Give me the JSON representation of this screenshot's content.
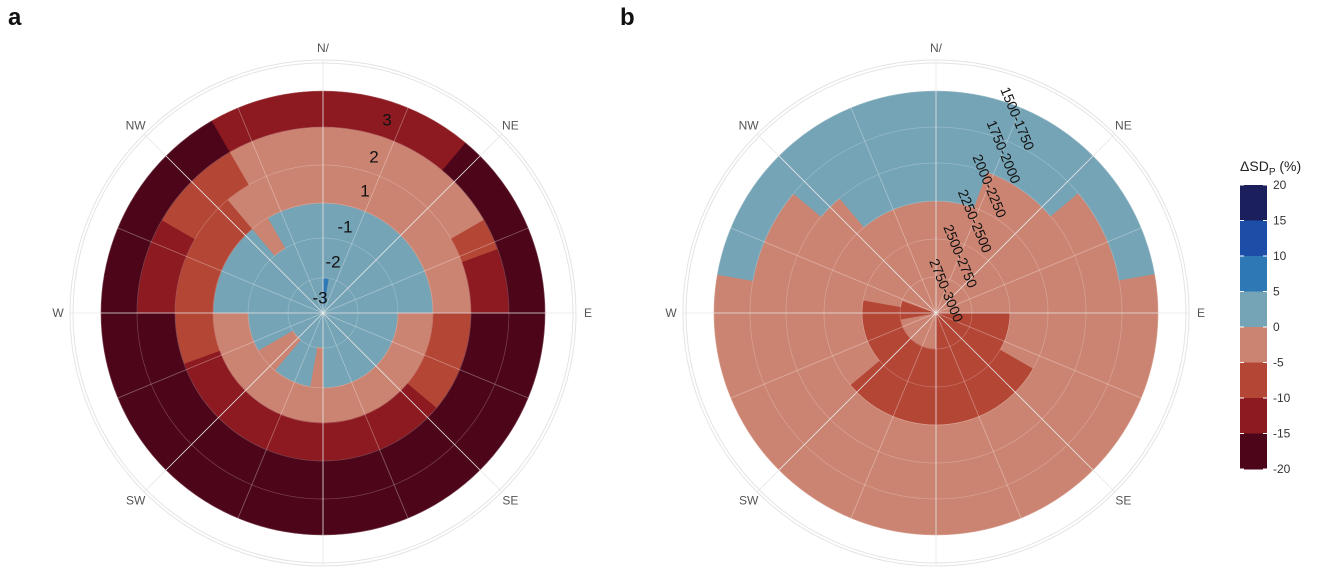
{
  "panels": {
    "a": {
      "letter": "a"
    },
    "b": {
      "letter": "b"
    }
  },
  "compass": {
    "directions": [
      "N/",
      "NE",
      "E",
      "SE",
      "S",
      "SW",
      "W",
      "NW"
    ]
  },
  "colorbar": {
    "title": "ΔSD",
    "title_sub": "P",
    "title_suffix": " (%)",
    "ticks": [
      "20",
      "15",
      "10",
      "5",
      "0",
      "-5",
      "-10",
      "-15",
      "-20"
    ],
    "bins": [
      {
        "from": 15,
        "to": 20,
        "color": "#1b1f5c"
      },
      {
        "from": 10,
        "to": 15,
        "color": "#1c4ea8"
      },
      {
        "from": 5,
        "to": 10,
        "color": "#2f78b6"
      },
      {
        "from": 0,
        "to": 5,
        "color": "#75a4b6"
      },
      {
        "from": -5,
        "to": 0,
        "color": "#cc8472"
      },
      {
        "from": -10,
        "to": -5,
        "color": "#b44636"
      },
      {
        "from": -15,
        "to": -10,
        "color": "#8c1a20"
      },
      {
        "from": -20,
        "to": -15,
        "color": "#4d0619"
      }
    ]
  },
  "chart_data": [
    {
      "type": "polar-heatmap",
      "panel": "a",
      "theta_labels": [
        "N/",
        "NE",
        "E",
        "SE",
        "S",
        "SW",
        "W",
        "NW"
      ],
      "sector_count": 36,
      "radial_axis_labels": [
        "-3",
        "-2",
        "-1",
        "1",
        "2",
        "3"
      ],
      "rings": [
        {
          "label": "-3",
          "values": [
            6,
            4,
            2,
            2,
            2,
            2,
            2,
            2,
            2,
            2,
            2,
            2,
            2,
            2,
            2,
            2,
            2,
            2,
            2,
            2,
            2,
            2,
            2,
            2,
            2,
            2,
            2,
            2,
            2,
            2,
            2,
            2,
            2,
            2,
            2,
            2
          ]
        },
        {
          "label": "-2",
          "values": [
            2,
            2,
            2,
            2,
            2,
            2,
            2,
            2,
            2,
            2,
            2,
            2,
            2,
            2,
            2,
            2,
            2,
            2,
            -2,
            2,
            2,
            2,
            -2,
            -2,
            2,
            2,
            2,
            2,
            2,
            2,
            2,
            2,
            2,
            2,
            2,
            2
          ]
        },
        {
          "label": "-1",
          "values": [
            2,
            2,
            2,
            2,
            2,
            2,
            2,
            2,
            2,
            -2,
            -2,
            -2,
            -2,
            -2,
            -2,
            -2,
            -2,
            -2,
            -2,
            -2,
            -2,
            -2,
            -2,
            -2,
            -2,
            -2,
            -2,
            2,
            2,
            2,
            2,
            2,
            -2,
            2,
            2,
            2
          ]
        },
        {
          "label": "1",
          "values": [
            -2,
            -2,
            -2,
            -2,
            -2,
            -2,
            -2,
            -2,
            -2,
            -7,
            -7,
            -7,
            -7,
            -12,
            -12,
            -12,
            -12,
            -12,
            -12,
            -12,
            -12,
            -12,
            -12,
            -12,
            -12,
            -7,
            -7,
            -7,
            -7,
            -7,
            -7,
            -7,
            -2,
            -2,
            -2,
            -2
          ]
        },
        {
          "label": "2",
          "values": [
            -2,
            -2,
            -2,
            -2,
            -2,
            -2,
            -7,
            -12,
            -12,
            -17,
            -17,
            -17,
            -17,
            -17,
            -17,
            -17,
            -17,
            -17,
            -17,
            -17,
            -17,
            -17,
            -17,
            -17,
            -17,
            -17,
            -17,
            -12,
            -12,
            -12,
            -7,
            -7,
            -7,
            -2,
            -2,
            -2
          ]
        },
        {
          "label": "3",
          "values": [
            -12,
            -12,
            -12,
            -12,
            -17,
            -17,
            -17,
            -17,
            -17,
            -17,
            -17,
            -17,
            -17,
            -17,
            -17,
            -17,
            -17,
            -17,
            -17,
            -17,
            -17,
            -17,
            -17,
            -17,
            -17,
            -17,
            -17,
            -17,
            -17,
            -17,
            -17,
            -17,
            -17,
            -12,
            -12,
            -12
          ]
        }
      ]
    },
    {
      "type": "polar-heatmap",
      "panel": "b",
      "theta_labels": [
        "N/",
        "NE",
        "E",
        "SE",
        "S",
        "SW",
        "W",
        "NW"
      ],
      "sector_count": 36,
      "radial_axis_labels": [
        "2750-3000",
        "2500-2750",
        "2250-2500",
        "2000-2250",
        "1750-2000",
        "1500-1750"
      ],
      "rings": [
        {
          "label": "2750-3000",
          "values": [
            -2,
            -2,
            -2,
            -2,
            -2,
            -2,
            -2,
            -2,
            -2,
            -7,
            -7,
            -7,
            -7,
            -7,
            -7,
            -7,
            -7,
            -7,
            -2,
            -2,
            -2,
            -2,
            -2,
            -2,
            -2,
            -2,
            -7,
            -7,
            -7,
            -2,
            -2,
            -2,
            -2,
            -2,
            -2,
            -2
          ]
        },
        {
          "label": "2500-2750",
          "values": [
            -2,
            -2,
            -2,
            -2,
            -2,
            -2,
            -2,
            -2,
            -2,
            -7,
            -7,
            -7,
            -7,
            -7,
            -7,
            -7,
            -7,
            -7,
            -7,
            -7,
            -7,
            -7,
            -7,
            -7,
            -7,
            -7,
            -7,
            -7,
            -2,
            -2,
            -2,
            -2,
            -2,
            -2,
            -2,
            -2
          ]
        },
        {
          "label": "2250-2500",
          "values": [
            -2,
            -2,
            -2,
            -2,
            -2,
            -2,
            -2,
            -2,
            -2,
            -2,
            -2,
            -2,
            -7,
            -7,
            -7,
            -7,
            -7,
            -7,
            -7,
            -7,
            -7,
            -7,
            -7,
            -2,
            -2,
            -2,
            -2,
            -2,
            -2,
            -2,
            -2,
            -2,
            -2,
            -2,
            -2,
            -2
          ]
        },
        {
          "label": "2000-2250",
          "values": [
            2,
            2,
            -2,
            -2,
            -2,
            -2,
            -2,
            -2,
            -2,
            -2,
            -2,
            -2,
            -2,
            -2,
            -2,
            -2,
            -2,
            -2,
            -2,
            -2,
            -2,
            -2,
            -2,
            -2,
            -2,
            -2,
            -2,
            -2,
            -2,
            -2,
            -2,
            -2,
            2,
            2,
            2,
            2
          ]
        },
        {
          "label": "1750-2000",
          "values": [
            2,
            2,
            2,
            2,
            2,
            -2,
            -2,
            -2,
            -2,
            -2,
            -2,
            -2,
            -2,
            -2,
            -2,
            -2,
            -2,
            -2,
            -2,
            -2,
            -2,
            -2,
            -2,
            -2,
            -2,
            -2,
            -2,
            -2,
            -2,
            -2,
            -2,
            2,
            2,
            2,
            2,
            2
          ]
        },
        {
          "label": "1500-1750",
          "values": [
            2,
            2,
            2,
            2,
            2,
            2,
            2,
            2,
            -2,
            -2,
            -2,
            -2,
            -2,
            -2,
            -2,
            -2,
            -2,
            -2,
            -2,
            -2,
            -2,
            -2,
            -2,
            -2,
            -2,
            -2,
            -2,
            -2,
            2,
            2,
            2,
            2,
            2,
            2,
            2,
            2
          ]
        }
      ]
    }
  ]
}
